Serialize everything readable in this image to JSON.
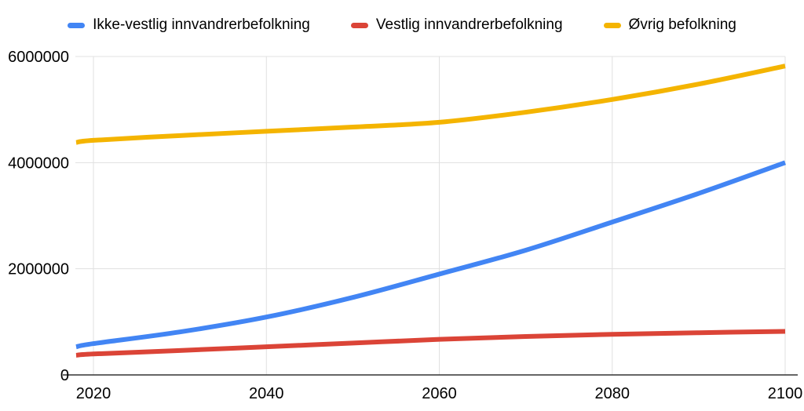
{
  "chart_data": {
    "type": "line",
    "title": "",
    "xlabel": "",
    "ylabel": "",
    "x": [
      2018,
      2020,
      2030,
      2040,
      2050,
      2060,
      2070,
      2080,
      2090,
      2100
    ],
    "series": [
      {
        "name": "Ikke-vestlig innvandrerbefolkning",
        "color": "#4285F4",
        "values": [
          530000,
          590000,
          810000,
          1090000,
          1460000,
          1900000,
          2350000,
          2880000,
          3420000,
          4000000
        ]
      },
      {
        "name": "Vestlig innvandrerbefolkning",
        "color": "#DB4437",
        "values": [
          370000,
          395000,
          460000,
          530000,
          600000,
          670000,
          725000,
          765000,
          795000,
          820000
        ]
      },
      {
        "name": "Øvrig befolkning",
        "color": "#F4B400",
        "values": [
          4380000,
          4420000,
          4510000,
          4590000,
          4670000,
          4760000,
          4950000,
          5190000,
          5480000,
          5820000
        ]
      }
    ],
    "xlim": [
      2018,
      2100
    ],
    "ylim": [
      0,
      6000000
    ],
    "x_ticks": [
      2020,
      2040,
      2060,
      2080,
      2100
    ],
    "x_tick_labels": [
      "2020",
      "2040",
      "2060",
      "2080",
      "2100"
    ],
    "y_ticks": [
      0,
      2000000,
      4000000,
      6000000
    ],
    "y_tick_labels": [
      "0",
      "2000000",
      "4000000",
      "6000000"
    ],
    "grid": true,
    "line_smoothing": true,
    "legend_position": "top",
    "background": "#ffffff",
    "grid_color": "#e0e0e0",
    "axis_color": "#333333",
    "label_color": "#000000"
  }
}
